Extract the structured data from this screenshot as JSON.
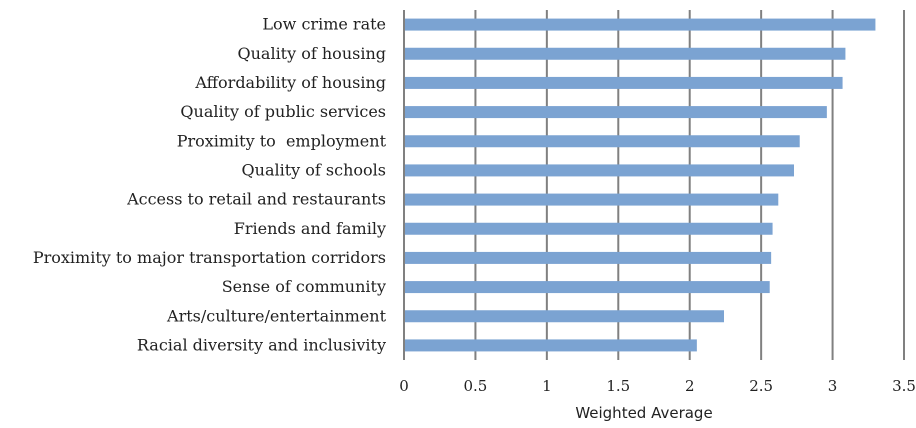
{
  "chart_data": {
    "type": "bar",
    "orientation": "horizontal",
    "categories": [
      "Low crime rate",
      "Quality of housing",
      "Affordability of housing",
      "Quality of public services",
      "Proximity to  employment",
      "Quality of schools",
      "Access to retail and restaurants",
      "Friends and family",
      "Proximity to major transportation corridors",
      "Sense of community",
      "Arts/culture/entertainment",
      "Racial diversity and inclusivity"
    ],
    "values": [
      3.3,
      3.09,
      3.07,
      2.96,
      2.77,
      2.73,
      2.62,
      2.58,
      2.57,
      2.56,
      2.24,
      2.05
    ],
    "title": "",
    "xlabel": "Weighted Average",
    "ylabel": "",
    "xlim": [
      0,
      3.5
    ],
    "xticks": [
      "0",
      "0.5",
      "1",
      "1.5",
      "2",
      "2.5",
      "3",
      "3.5"
    ],
    "grid": "vertical",
    "legend": "none",
    "bar_color": "#7ba3d2",
    "grid_color": "#808080"
  }
}
